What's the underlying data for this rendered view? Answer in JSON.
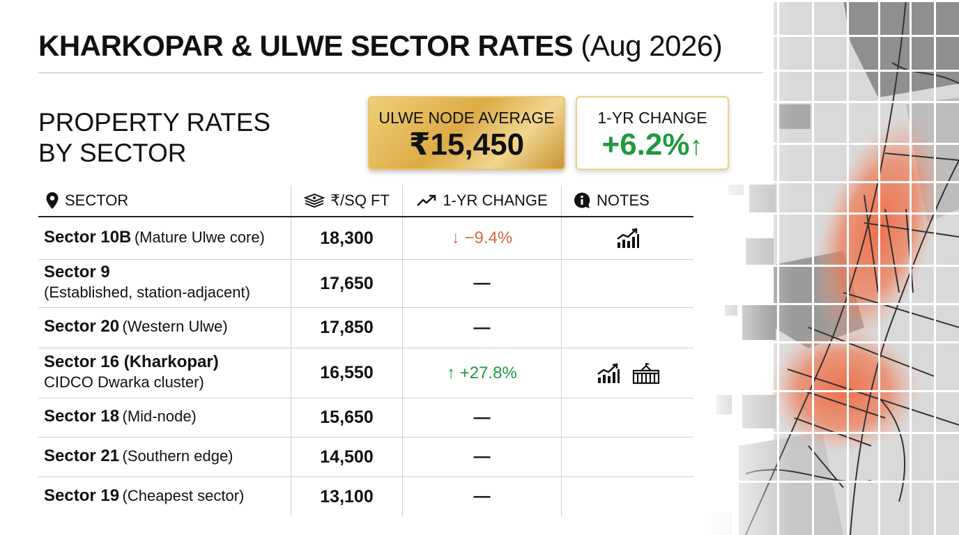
{
  "header": {
    "title_main": "KHARKOPAR & ULWE SECTOR RATES",
    "title_sub": "(Aug 2026)",
    "subtitle_line1": "PROPERTY RATES",
    "subtitle_line2": "BY SECTOR"
  },
  "cards": {
    "node_average": {
      "label": "ULWE NODE AVERAGE",
      "value": "₹15,450"
    },
    "one_year_change": {
      "label": "1-YR CHANGE",
      "value": "+6.2%",
      "arrow": "↑",
      "color": "#1f9a3f"
    }
  },
  "table": {
    "columns": {
      "sector": "SECTOR",
      "rate": "₹/SQ FT",
      "change": "1-YR CHANGE",
      "notes": "NOTES"
    },
    "rows": [
      {
        "name": "Sector 10B",
        "desc": "(Mature Ulwe core)",
        "rate": "18,300",
        "change": "↓ −9.4%",
        "trend": "down",
        "icons": [
          "growth-chart-icon"
        ]
      },
      {
        "name": "Sector 9",
        "desc": "(Established, station-adjacent)",
        "rate": "17,650",
        "change": "—",
        "trend": "none",
        "icons": []
      },
      {
        "name": "Sector 20",
        "desc": " (Western Ulwe)",
        "rate": "17,850",
        "change": "—",
        "trend": "none",
        "icons": []
      },
      {
        "name": "Sector 16 (Kharkopar)",
        "desc": "CIDCO Dwarka cluster)",
        "rate": "16,550",
        "change": "↑ +27.8%",
        "trend": "up",
        "icons": [
          "growth-chart-icon",
          "housing-complex-icon"
        ]
      },
      {
        "name": "Sector 18",
        "desc": "(Mid-node)",
        "rate": "15,650",
        "change": "—",
        "trend": "none",
        "icons": []
      },
      {
        "name": "Sector 21",
        "desc": "(Southern edge)",
        "rate": "14,500",
        "change": "—",
        "trend": "none",
        "icons": []
      },
      {
        "name": "Sector 19",
        "desc": "(Cheapest sector)",
        "rate": "13,100",
        "change": "—",
        "trend": "none",
        "icons": []
      }
    ]
  },
  "colors": {
    "up": "#1f9a3f",
    "down": "#d26a45",
    "gold": "#dcab45",
    "map_highlight": "#e8603c"
  }
}
